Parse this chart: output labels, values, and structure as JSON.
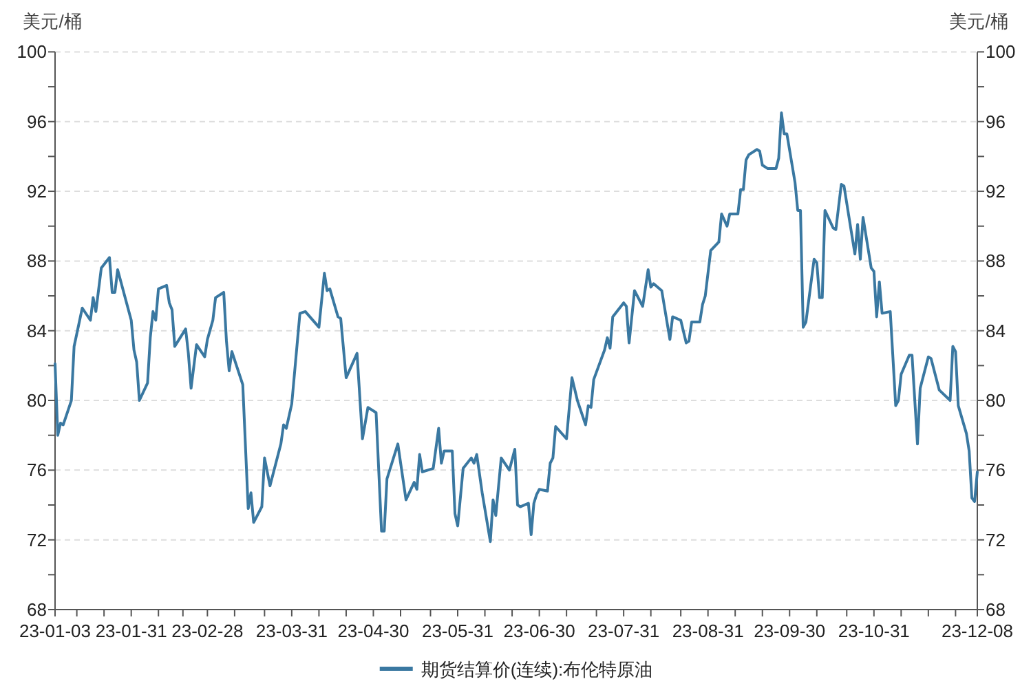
{
  "chart_data": {
    "type": "line",
    "ylabel": "美元/桶",
    "y2label": "美元/桶",
    "xlim": [
      "--01-03",
      "--12-08"
    ],
    "xticks": [
      {
        "value": "--01-03",
        "label": "23-01-03"
      },
      {
        "value": "--01-11",
        "label": null
      },
      {
        "value": "--01-21",
        "label": null
      },
      {
        "value": "--01-31",
        "label": "23-01-31"
      },
      {
        "value": "--02-10",
        "label": null
      },
      {
        "value": "--02-19",
        "label": null
      },
      {
        "value": "--02-28",
        "label": "23-02-28"
      },
      {
        "value": "--03-10",
        "label": null
      },
      {
        "value": "--03-21",
        "label": null
      },
      {
        "value": "--03-31",
        "label": "23-03-31"
      },
      {
        "value": "--04-10",
        "label": null
      },
      {
        "value": "--04-20",
        "label": null
      },
      {
        "value": "--04-30",
        "label": "23-04-30"
      },
      {
        "value": "--05-10",
        "label": null
      },
      {
        "value": "--05-21",
        "label": null
      },
      {
        "value": "--05-31",
        "label": "23-05-31"
      },
      {
        "value": "--06-10",
        "label": null
      },
      {
        "value": "--06-20",
        "label": null
      },
      {
        "value": "--06-30",
        "label": "23-06-30"
      },
      {
        "value": "--07-10",
        "label": null
      },
      {
        "value": "--07-21",
        "label": null
      },
      {
        "value": "--07-31",
        "label": "23-07-31"
      },
      {
        "value": "--08-10",
        "label": null
      },
      {
        "value": "--08-21",
        "label": null
      },
      {
        "value": "--08-31",
        "label": "23-08-31"
      },
      {
        "value": "--09-10",
        "label": null
      },
      {
        "value": "--09-20",
        "label": null
      },
      {
        "value": "--09-30",
        "label": "23-09-30"
      },
      {
        "value": "--10-10",
        "label": null
      },
      {
        "value": "--10-21",
        "label": null
      },
      {
        "value": "--10-31",
        "label": "23-10-31"
      },
      {
        "value": "--11-10",
        "label": null
      },
      {
        "value": "--11-20",
        "label": null
      },
      {
        "value": "--11-30",
        "label": null
      },
      {
        "value": "--12-08",
        "label": "23-12-08"
      }
    ],
    "ylim": [
      68,
      100
    ],
    "yticks": [
      68,
      {
        "value": 70,
        "label": null
      },
      72,
      {
        "value": 74,
        "label": null
      },
      76,
      {
        "value": 78,
        "label": null
      },
      80,
      {
        "value": 82,
        "label": null
      },
      84,
      {
        "value": 86,
        "label": null
      },
      88,
      {
        "value": 90,
        "label": null
      },
      92,
      {
        "value": 94,
        "label": null
      },
      96,
      {
        "value": 98,
        "label": null
      },
      100
    ],
    "y2lim": [
      68,
      100
    ],
    "y2ticks": [
      68,
      {
        "value": 70,
        "label": null
      },
      72,
      {
        "value": 74,
        "label": null
      },
      76,
      {
        "value": 78,
        "label": null
      },
      80,
      {
        "value": 82,
        "label": null
      },
      84,
      {
        "value": 86,
        "label": null
      },
      88,
      {
        "value": 90,
        "label": null
      },
      92,
      {
        "value": 94,
        "label": null
      },
      96,
      {
        "value": 98,
        "label": null
      },
      100
    ],
    "grid": "y",
    "legend": "bottom",
    "series": [
      {
        "name": "期货结算价(连续):布伦特原油",
        "color": "#3a78a1",
        "x": [
          "--01-03",
          "--01-04",
          "--01-05",
          "--01-06",
          "--01-09",
          "--01-10",
          "--01-13",
          "--01-16",
          "--01-17",
          "--01-18",
          "--01-20",
          "--01-23",
          "--01-24",
          "--01-25",
          "--01-26",
          "--01-31",
          "--02-01",
          "--02-02",
          "--02-03",
          "--02-06",
          "--02-07",
          "--02-08",
          "--02-09",
          "--02-10",
          "--02-13",
          "--02-14",
          "--02-15",
          "--02-16",
          "--02-20",
          "--02-21",
          "--02-22",
          "--02-24",
          "--02-27",
          "--02-28",
          "--03-02",
          "--03-03",
          "--03-06",
          "--03-07",
          "--03-08",
          "--03-09",
          "--03-13",
          "--03-15",
          "--03-16",
          "--03-17",
          "--03-20",
          "--03-21",
          "--03-23",
          "--03-27",
          "--03-28",
          "--03-29",
          "--03-31",
          "--04-03",
          "--04-05",
          "--04-10",
          "--04-12",
          "--04-13",
          "--04-14",
          "--04-17",
          "--04-18",
          "--04-20",
          "--04-24",
          "--04-26",
          "--04-28",
          "--05-01",
          "--05-03",
          "--05-04",
          "--05-05",
          "--05-09",
          "--05-12",
          "--05-15",
          "--05-16",
          "--05-17",
          "--05-18",
          "--05-22",
          "--05-24",
          "--05-25",
          "--05-26",
          "--05-29",
          "--05-30",
          "--05-31",
          "--06-02",
          "--06-05",
          "--06-06",
          "--06-07",
          "--06-09",
          "--06-12",
          "--06-13",
          "--06-14",
          "--06-16",
          "--06-19",
          "--06-21",
          "--06-22",
          "--06-23",
          "--06-26",
          "--06-27",
          "--06-28",
          "--06-29",
          "--06-30",
          "--07-03",
          "--07-04",
          "--07-05",
          "--07-06",
          "--07-10",
          "--07-12",
          "--07-14",
          "--07-17",
          "--07-18",
          "--07-19",
          "--07-20",
          "--07-24",
          "--07-25",
          "--07-26",
          "--07-27",
          "--07-31",
          "--08-01",
          "--08-02",
          "--08-04",
          "--08-07",
          "--08-09",
          "--08-10",
          "--08-11",
          "--08-14",
          "--08-17",
          "--08-18",
          "--08-21",
          "--08-23",
          "--08-24",
          "--08-25",
          "--08-28",
          "--08-29",
          "--08-30",
          "--09-01",
          "--09-04",
          "--09-05",
          "--09-07",
          "--09-08",
          "--09-11",
          "--09-12",
          "--09-13",
          "--09-14",
          "--09-15",
          "--09-18",
          "--09-19",
          "--09-20",
          "--09-22",
          "--09-25",
          "--09-26",
          "--09-27",
          "--09-28",
          "--09-29",
          "--10-02",
          "--10-03",
          "--10-04",
          "--10-05",
          "--10-06",
          "--10-09",
          "--10-10",
          "--10-11",
          "--10-12",
          "--10-13",
          "--10-16",
          "--10-17",
          "--10-19",
          "--10-20",
          "--10-24",
          "--10-25",
          "--10-26",
          "--10-27",
          "--10-30",
          "--10-31",
          "--11-01",
          "--11-02",
          "--11-03",
          "--11-06",
          "--11-08",
          "--11-09",
          "--11-10",
          "--11-13",
          "--11-14",
          "--11-16",
          "--11-17",
          "--11-20",
          "--11-21",
          "--11-24",
          "--11-28",
          "--11-29",
          "--11-30",
          "--12-01",
          "--12-04",
          "--12-05",
          "--12-06",
          "--12-07",
          "--12-08"
        ],
        "values": [
          82.1,
          78.0,
          78.7,
          78.6,
          80.0,
          83.1,
          85.3,
          84.6,
          85.9,
          85.1,
          87.6,
          88.2,
          86.2,
          86.2,
          87.5,
          84.6,
          82.9,
          82.2,
          80.0,
          81.0,
          83.6,
          85.1,
          84.6,
          86.4,
          86.6,
          85.6,
          85.2,
          83.1,
          84.1,
          82.7,
          80.7,
          83.2,
          82.5,
          83.5,
          84.6,
          85.9,
          86.2,
          83.4,
          81.7,
          82.8,
          80.9,
          73.8,
          74.7,
          73.0,
          73.9,
          76.7,
          75.1,
          77.5,
          78.6,
          78.4,
          79.8,
          85.0,
          85.1,
          84.2,
          87.3,
          86.3,
          86.4,
          84.8,
          84.7,
          81.3,
          82.7,
          77.8,
          79.6,
          79.3,
          72.5,
          72.5,
          75.5,
          77.5,
          74.3,
          75.3,
          74.9,
          76.9,
          75.9,
          76.1,
          78.4,
          76.4,
          77.1,
          77.1,
          73.5,
          72.8,
          76.1,
          76.7,
          76.4,
          76.9,
          74.7,
          71.9,
          74.3,
          73.4,
          76.7,
          76.0,
          77.2,
          74.0,
          73.9,
          74.1,
          72.3,
          74.1,
          74.6,
          74.9,
          74.8,
          76.4,
          76.7,
          78.5,
          77.8,
          81.3,
          80.0,
          78.6,
          79.7,
          79.6,
          81.2,
          82.9,
          83.6,
          83.0,
          84.8,
          85.6,
          85.4,
          83.3,
          86.3,
          85.4,
          87.5,
          86.5,
          86.7,
          86.3,
          83.5,
          84.8,
          84.6,
          83.3,
          83.4,
          84.5,
          84.5,
          85.5,
          86.0,
          88.6,
          89.1,
          90.7,
          90.0,
          90.7,
          90.7,
          92.1,
          92.1,
          93.8,
          94.1,
          94.4,
          94.3,
          93.5,
          93.3,
          93.3,
          93.9,
          96.5,
          95.3,
          95.3,
          92.5,
          90.9,
          90.9,
          84.2,
          84.5,
          88.1,
          87.9,
          85.9,
          85.9,
          90.9,
          89.9,
          89.8,
          92.4,
          92.3,
          88.4,
          90.1,
          88.1,
          90.5,
          87.6,
          87.4,
          84.8,
          86.8,
          85.0,
          85.1,
          79.7,
          80.0,
          81.5,
          82.6,
          82.6,
          77.5,
          80.7,
          82.5,
          82.4,
          80.6,
          80.0,
          83.1,
          82.8,
          79.7,
          78.1,
          77.1,
          74.4,
          74.2,
          75.9
        ]
      }
    ]
  }
}
